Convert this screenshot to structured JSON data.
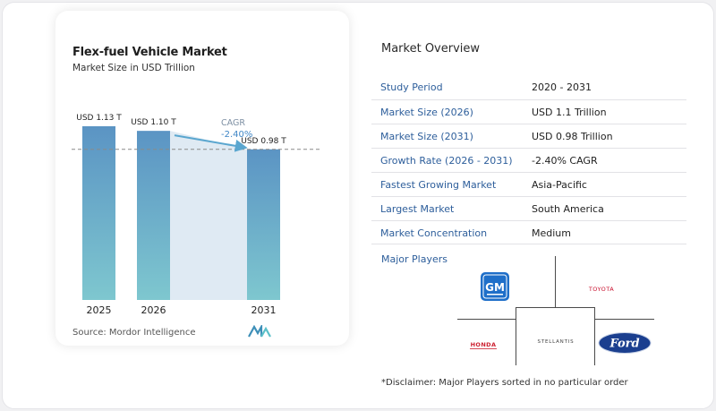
{
  "chart_data": {
    "type": "bar",
    "title": "Flex-fuel Vehicle Market",
    "subtitle": "Market Size in USD Trillion",
    "categories": [
      "2025",
      "2026",
      "2031"
    ],
    "values": [
      1.13,
      1.1,
      0.98
    ],
    "value_labels": [
      "USD 1.13 T",
      "USD 1.10 T",
      "USD 0.98 T"
    ],
    "cagr_label": "CAGR",
    "cagr_value": "-2.40%",
    "colors": {
      "bar_top": "#5b94c4",
      "bar_bottom": "#7ec7cf",
      "area": "#dfeaf3",
      "arrow": "#5aa6cf"
    }
  },
  "source": "Source:  Mordor Intelligence",
  "overview": {
    "title": "Market Overview",
    "rows": [
      {
        "label": "Study Period",
        "value": "2020 - 2031"
      },
      {
        "label": "Market Size (2026)",
        "value": "USD 1.1 Trillion"
      },
      {
        "label": "Market Size (2031)",
        "value": "USD 0.98 Trillion"
      },
      {
        "label": "Growth Rate (2026 - 2031)",
        "value": "-2.40% CAGR"
      },
      {
        "label": "Fastest Growing Market",
        "value": "Asia-Pacific"
      },
      {
        "label": "Largest Market",
        "value": "South America"
      },
      {
        "label": "Market Concentration",
        "value": "Medium"
      }
    ]
  },
  "players": {
    "label": "Major Players",
    "logos": {
      "gm": "GM",
      "toyota": "TOYOTA",
      "honda": "HONDA",
      "stellantis": "STELLANTIS",
      "ford": "Ford"
    }
  },
  "disclaimer": "*Disclaimer: Major Players sorted in no particular order"
}
